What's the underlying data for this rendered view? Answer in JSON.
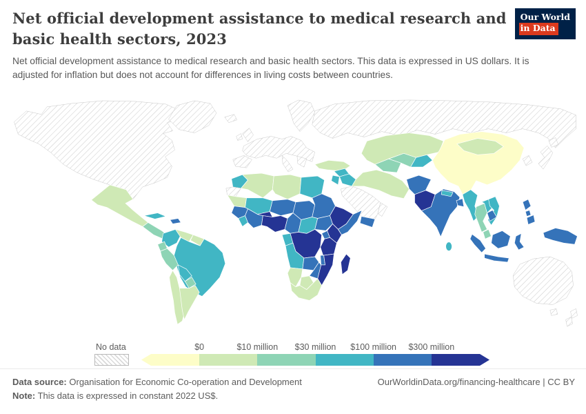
{
  "header": {
    "title": "Net official development assistance to medical research and basic health sectors, 2023",
    "subtitle": "Net official development assistance to medical research and basic health sectors. This data is expressed in US dollars. It is adjusted for inflation but does not account for differences in living costs between countries.",
    "logo": {
      "line1": "Our World",
      "line2": "in Data",
      "bg": "#002147",
      "accent": "#dc3a1e"
    }
  },
  "legend": {
    "no_data_label": "No data",
    "tick_labels": [
      "$0",
      "$10 million",
      "$30 million",
      "$100 million",
      "$300 million"
    ],
    "colors": [
      "#fdfdc8",
      "#cfe9b5",
      "#8ed4b5",
      "#41b6c4",
      "#3573b9",
      "#253494"
    ]
  },
  "footer": {
    "source_label": "Data source:",
    "source_text": "Organisation for Economic Co-operation and Development",
    "note_label": "Note:",
    "note_text": "This data is expressed in constant 2022 US$.",
    "link": "OurWorldinData.org/financing-healthcare | CC BY"
  },
  "chart_data": {
    "type": "heatmap",
    "subtype": "choropleth-world-map",
    "title": "Net official development assistance to medical research and basic health sectors",
    "year": "2023",
    "unit": "constant 2022 US$",
    "legend_position": "bottom",
    "legend_bins": [
      {
        "key": "under-0",
        "range": "$0 or less",
        "color": "#fdfdc8"
      },
      {
        "key": "0-10m",
        "range": "$0 - $10 million",
        "color": "#cfe9b5"
      },
      {
        "key": "10-30m",
        "range": "$10 - $30 million",
        "color": "#8ed4b5"
      },
      {
        "key": "30-100m",
        "range": "$30 - $100 million",
        "color": "#41b6c4"
      },
      {
        "key": "100-300m",
        "range": "$100 - $300 million",
        "color": "#3573b9"
      },
      {
        "key": "over-300m",
        "range": "more than $300 million",
        "color": "#253494"
      },
      {
        "key": "no-data",
        "range": "No data",
        "color": "hatch"
      }
    ],
    "regions": [
      {
        "id": "greenland",
        "bin": "no-data"
      },
      {
        "id": "north-america",
        "bin": "no-data"
      },
      {
        "id": "europe",
        "bin": "no-data"
      },
      {
        "id": "russia",
        "bin": "no-data"
      },
      {
        "id": "western-sahara",
        "bin": "no-data"
      },
      {
        "id": "saudi-arabia",
        "bin": "no-data"
      },
      {
        "id": "oman",
        "bin": "no-data"
      },
      {
        "id": "korea",
        "bin": "no-data"
      },
      {
        "id": "japan",
        "bin": "no-data"
      },
      {
        "id": "australia",
        "bin": "no-data"
      },
      {
        "id": "new-zealand",
        "bin": "no-data"
      },
      {
        "id": "mexico",
        "bin": "0-10m"
      },
      {
        "id": "central-america",
        "bin": "10-30m"
      },
      {
        "id": "cuba",
        "bin": "30-100m"
      },
      {
        "id": "hispaniola",
        "bin": "100-300m"
      },
      {
        "id": "colombia",
        "bin": "30-100m"
      },
      {
        "id": "venezuela",
        "bin": "0-10m"
      },
      {
        "id": "guyanas",
        "bin": "0-10m"
      },
      {
        "id": "ecuador",
        "bin": "10-30m"
      },
      {
        "id": "peru",
        "bin": "10-30m"
      },
      {
        "id": "brazil",
        "bin": "30-100m"
      },
      {
        "id": "bolivia",
        "bin": "30-100m"
      },
      {
        "id": "paraguay",
        "bin": "10-30m"
      },
      {
        "id": "chile",
        "bin": "0-10m"
      },
      {
        "id": "argentina",
        "bin": "0-10m"
      },
      {
        "id": "morocco",
        "bin": "30-100m"
      },
      {
        "id": "algeria",
        "bin": "0-10m"
      },
      {
        "id": "libya",
        "bin": "0-10m"
      },
      {
        "id": "egypt",
        "bin": "30-100m"
      },
      {
        "id": "mauritania",
        "bin": "0-10m"
      },
      {
        "id": "mali",
        "bin": "30-100m"
      },
      {
        "id": "niger",
        "bin": "100-300m"
      },
      {
        "id": "chad",
        "bin": "100-300m"
      },
      {
        "id": "sudan",
        "bin": "100-300m"
      },
      {
        "id": "senegal-guinea",
        "bin": "100-300m"
      },
      {
        "id": "sierra-leone-liberia",
        "bin": "30-100m"
      },
      {
        "id": "cote-divoire-ghana",
        "bin": "100-300m"
      },
      {
        "id": "burkina-faso",
        "bin": "over-300m"
      },
      {
        "id": "nigeria",
        "bin": "over-300m"
      },
      {
        "id": "cameroon",
        "bin": "100-300m"
      },
      {
        "id": "central-african-republic",
        "bin": "30-100m"
      },
      {
        "id": "south-sudan",
        "bin": "100-300m"
      },
      {
        "id": "ethiopia",
        "bin": "over-300m"
      },
      {
        "id": "somalia",
        "bin": "100-300m"
      },
      {
        "id": "gabon-congo",
        "bin": "30-100m"
      },
      {
        "id": "drc",
        "bin": "over-300m"
      },
      {
        "id": "uganda",
        "bin": "100-300m"
      },
      {
        "id": "kenya",
        "bin": "over-300m"
      },
      {
        "id": "tanzania",
        "bin": "over-300m"
      },
      {
        "id": "angola",
        "bin": "30-100m"
      },
      {
        "id": "zambia",
        "bin": "100-300m"
      },
      {
        "id": "malawi",
        "bin": "100-300m"
      },
      {
        "id": "mozambique",
        "bin": "over-300m"
      },
      {
        "id": "zimbabwe",
        "bin": "100-300m"
      },
      {
        "id": "namibia",
        "bin": "0-10m"
      },
      {
        "id": "botswana",
        "bin": "0-10m"
      },
      {
        "id": "south-africa",
        "bin": "0-10m"
      },
      {
        "id": "madagascar",
        "bin": "over-300m"
      },
      {
        "id": "turkey",
        "bin": "0-10m"
      },
      {
        "id": "syria",
        "bin": "30-100m"
      },
      {
        "id": "iraq",
        "bin": "30-100m"
      },
      {
        "id": "jordan-israel",
        "bin": "30-100m"
      },
      {
        "id": "yemen",
        "bin": "100-300m"
      },
      {
        "id": "iran",
        "bin": "0-10m"
      },
      {
        "id": "kazakhstan",
        "bin": "0-10m"
      },
      {
        "id": "turkmenistan",
        "bin": "10-30m"
      },
      {
        "id": "uzbekistan",
        "bin": "10-30m"
      },
      {
        "id": "kyrgyzstan-tajikistan",
        "bin": "30-100m"
      },
      {
        "id": "afghanistan",
        "bin": "100-300m"
      },
      {
        "id": "pakistan",
        "bin": "over-300m"
      },
      {
        "id": "india",
        "bin": "100-300m"
      },
      {
        "id": "nepal",
        "bin": "30-100m"
      },
      {
        "id": "bangladesh",
        "bin": "100-300m"
      },
      {
        "id": "sri-lanka",
        "bin": "30-100m"
      },
      {
        "id": "myanmar",
        "bin": "30-100m"
      },
      {
        "id": "thailand",
        "bin": "10-30m"
      },
      {
        "id": "laos",
        "bin": "30-100m"
      },
      {
        "id": "vietnam",
        "bin": "30-100m"
      },
      {
        "id": "cambodia",
        "bin": "100-300m"
      },
      {
        "id": "malaysia",
        "bin": "10-30m"
      },
      {
        "id": "china",
        "bin": "under-0"
      },
      {
        "id": "mongolia",
        "bin": "0-10m"
      },
      {
        "id": "philippines",
        "bin": "100-300m"
      },
      {
        "id": "indonesia",
        "bin": "100-300m"
      },
      {
        "id": "new-guinea",
        "bin": "100-300m"
      }
    ]
  }
}
